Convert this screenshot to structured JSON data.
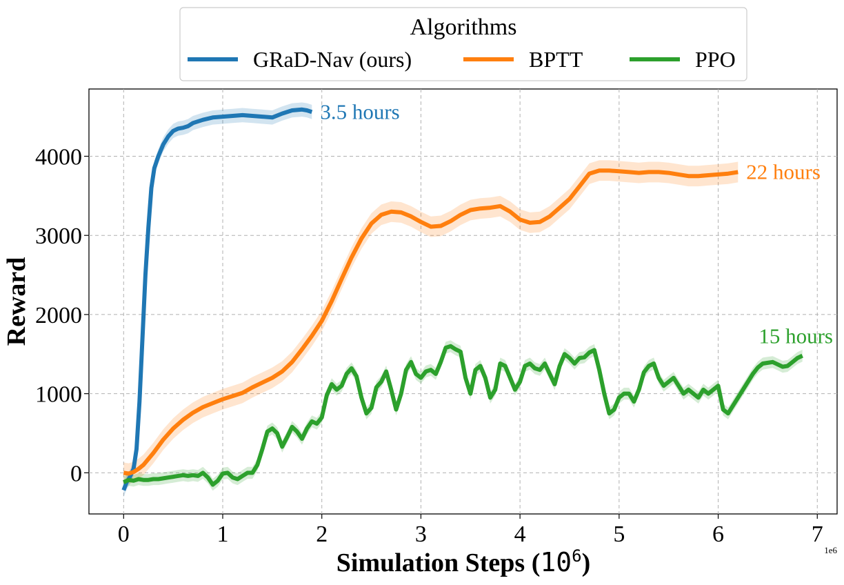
{
  "chart_data": {
    "type": "line",
    "xlabel_text": "Simulation Steps (",
    "xlabel_math": "10",
    "xlabel_exp": "6",
    "xlabel_close": ")",
    "ylabel": "Reward",
    "x_offset_label": "1e6",
    "xlim": [
      -0.35,
      7.2
    ],
    "ylim": [
      -520,
      4850
    ],
    "x_ticks": [
      0,
      1,
      2,
      3,
      4,
      5,
      6,
      7
    ],
    "x_tick_labels": [
      "0",
      "1",
      "2",
      "3",
      "4",
      "5",
      "6",
      "7"
    ],
    "y_ticks": [
      0,
      1000,
      2000,
      3000,
      4000
    ],
    "y_tick_labels": [
      "0",
      "1000",
      "2000",
      "3000",
      "4000"
    ],
    "grid": true,
    "legend": {
      "title": "Algorithms",
      "placement": "top-center-outside",
      "ncol": 3
    },
    "series": [
      {
        "name": "GRaD-Nav (ours)",
        "color": "#1f77b4",
        "annotation": "3.5 hours",
        "band": 90,
        "x": [
          0,
          0.03,
          0.06,
          0.1,
          0.13,
          0.16,
          0.19,
          0.22,
          0.25,
          0.28,
          0.31,
          0.35,
          0.4,
          0.45,
          0.5,
          0.55,
          0.6,
          0.65,
          0.7,
          0.8,
          0.9,
          1.0,
          1.1,
          1.2,
          1.3,
          1.4,
          1.5,
          1.6,
          1.7,
          1.8,
          1.85,
          1.9
        ],
        "values": [
          -220,
          -120,
          -60,
          50,
          300,
          900,
          1700,
          2500,
          3100,
          3600,
          3850,
          4000,
          4150,
          4250,
          4320,
          4350,
          4360,
          4380,
          4420,
          4460,
          4490,
          4500,
          4510,
          4520,
          4510,
          4500,
          4490,
          4540,
          4580,
          4590,
          4580,
          4560
        ]
      },
      {
        "name": "BPTT",
        "color": "#ff7f0e",
        "annotation": "22 hours",
        "band": 130,
        "x": [
          0,
          0.05,
          0.1,
          0.15,
          0.2,
          0.3,
          0.4,
          0.5,
          0.6,
          0.7,
          0.8,
          0.9,
          1.0,
          1.1,
          1.2,
          1.3,
          1.4,
          1.5,
          1.6,
          1.7,
          1.8,
          1.9,
          2.0,
          2.1,
          2.2,
          2.3,
          2.4,
          2.5,
          2.6,
          2.7,
          2.8,
          2.9,
          3.0,
          3.1,
          3.2,
          3.3,
          3.4,
          3.5,
          3.6,
          3.7,
          3.8,
          3.9,
          4.0,
          4.1,
          4.2,
          4.3,
          4.4,
          4.5,
          4.6,
          4.7,
          4.8,
          4.9,
          5.0,
          5.1,
          5.2,
          5.3,
          5.4,
          5.5,
          5.6,
          5.7,
          5.8,
          5.9,
          6.0,
          6.1,
          6.2
        ],
        "values": [
          0,
          -10,
          10,
          50,
          100,
          250,
          420,
          560,
          670,
          760,
          830,
          880,
          930,
          970,
          1010,
          1080,
          1140,
          1200,
          1280,
          1400,
          1560,
          1730,
          1920,
          2170,
          2450,
          2720,
          2960,
          3150,
          3260,
          3300,
          3290,
          3240,
          3170,
          3110,
          3120,
          3180,
          3260,
          3320,
          3340,
          3350,
          3370,
          3300,
          3200,
          3160,
          3170,
          3240,
          3350,
          3460,
          3620,
          3780,
          3820,
          3820,
          3810,
          3800,
          3790,
          3800,
          3800,
          3790,
          3770,
          3750,
          3750,
          3760,
          3770,
          3780,
          3800
        ]
      },
      {
        "name": "PPO",
        "color": "#2ca02c",
        "annotation": "15 hours",
        "band": 75,
        "x": [
          0,
          0.05,
          0.1,
          0.15,
          0.2,
          0.25,
          0.3,
          0.35,
          0.4,
          0.45,
          0.5,
          0.55,
          0.6,
          0.65,
          0.7,
          0.75,
          0.8,
          0.85,
          0.9,
          0.95,
          1.0,
          1.05,
          1.1,
          1.15,
          1.2,
          1.25,
          1.3,
          1.35,
          1.4,
          1.45,
          1.5,
          1.55,
          1.6,
          1.65,
          1.7,
          1.75,
          1.8,
          1.85,
          1.9,
          1.95,
          2.0,
          2.05,
          2.1,
          2.15,
          2.2,
          2.25,
          2.3,
          2.35,
          2.4,
          2.45,
          2.5,
          2.55,
          2.6,
          2.65,
          2.7,
          2.75,
          2.8,
          2.85,
          2.9,
          2.95,
          3.0,
          3.05,
          3.1,
          3.15,
          3.2,
          3.25,
          3.3,
          3.35,
          3.4,
          3.45,
          3.5,
          3.55,
          3.6,
          3.65,
          3.7,
          3.75,
          3.8,
          3.85,
          3.9,
          3.95,
          4.0,
          4.05,
          4.1,
          4.15,
          4.2,
          4.25,
          4.3,
          4.35,
          4.4,
          4.45,
          4.5,
          4.55,
          4.6,
          4.65,
          4.7,
          4.75,
          4.8,
          4.85,
          4.9,
          4.95,
          5.0,
          5.05,
          5.1,
          5.15,
          5.2,
          5.25,
          5.3,
          5.35,
          5.4,
          5.45,
          5.5,
          5.55,
          5.6,
          5.65,
          5.7,
          5.75,
          5.8,
          5.85,
          5.9,
          5.95,
          6.0,
          6.05,
          6.1,
          6.15,
          6.2,
          6.25,
          6.3,
          6.35,
          6.4,
          6.45,
          6.5,
          6.55,
          6.6,
          6.65,
          6.7,
          6.75,
          6.8,
          6.85
        ],
        "values": [
          -120,
          -90,
          -100,
          -80,
          -90,
          -90,
          -80,
          -80,
          -70,
          -60,
          -50,
          -40,
          -30,
          -40,
          -30,
          -40,
          0,
          -60,
          -150,
          -100,
          -10,
          0,
          -60,
          -80,
          -40,
          0,
          0,
          100,
          300,
          520,
          560,
          500,
          330,
          450,
          580,
          520,
          430,
          560,
          650,
          620,
          700,
          980,
          1120,
          1050,
          1100,
          1250,
          1320,
          1220,
          950,
          750,
          820,
          1080,
          1150,
          1280,
          1050,
          800,
          1000,
          1300,
          1400,
          1250,
          1200,
          1280,
          1300,
          1250,
          1400,
          1580,
          1600,
          1560,
          1530,
          1200,
          1000,
          1300,
          1350,
          1200,
          950,
          1050,
          1380,
          1350,
          1200,
          1050,
          1150,
          1350,
          1380,
          1320,
          1300,
          1380,
          1250,
          1120,
          1350,
          1500,
          1450,
          1380,
          1450,
          1460,
          1520,
          1550,
          1300,
          1000,
          750,
          800,
          950,
          1000,
          1000,
          900,
          1050,
          1270,
          1350,
          1380,
          1200,
          1100,
          1150,
          1200,
          1100,
          1000,
          1050,
          1000,
          950,
          1050,
          1000,
          1050,
          1100,
          800,
          750,
          850,
          950,
          1050,
          1150,
          1250,
          1330,
          1380,
          1390,
          1400,
          1370,
          1340,
          1350,
          1400,
          1450,
          1480
        ]
      }
    ]
  }
}
